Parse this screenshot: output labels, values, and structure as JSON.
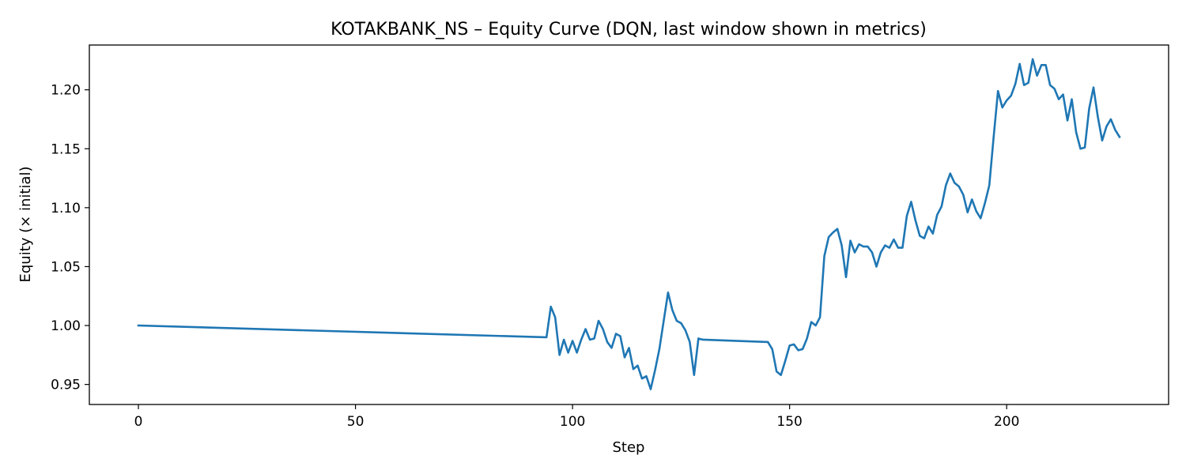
{
  "chart_data": {
    "type": "line",
    "title": "KOTAKBANK_NS – Equity Curve (DQN, last window shown in metrics)",
    "xlabel": "Step",
    "ylabel": "Equity (× initial)",
    "xlim": [
      -11.3,
      237.3
    ],
    "ylim": [
      0.933,
      1.238
    ],
    "xticks": [
      0,
      50,
      100,
      150,
      200
    ],
    "yticks": [
      0.95,
      1.0,
      1.05,
      1.1,
      1.15,
      1.2
    ],
    "ytick_labels": [
      "0.95",
      "1.00",
      "1.05",
      "1.10",
      "1.15",
      "1.20"
    ],
    "grid": false,
    "series": [
      {
        "color": "#1f77b4",
        "x": [
          0,
          94,
          95,
          96,
          97,
          98,
          99,
          100,
          101,
          102,
          103,
          104,
          105,
          106,
          107,
          108,
          109,
          110,
          111,
          112,
          113,
          114,
          115,
          116,
          117,
          118,
          119,
          120,
          121,
          122,
          123,
          124,
          125,
          126,
          127,
          128,
          129,
          130,
          145,
          146,
          147,
          148,
          149,
          150,
          151,
          152,
          153,
          154,
          155,
          156,
          157,
          158,
          159,
          160,
          161,
          162,
          163,
          164,
          165,
          166,
          167,
          168,
          169,
          170,
          171,
          172,
          173,
          174,
          175,
          176,
          177,
          178,
          179,
          180,
          181,
          182,
          183,
          184,
          185,
          186,
          187,
          188,
          189,
          190,
          191,
          192,
          193,
          194,
          195,
          196,
          197,
          198,
          199,
          200,
          201,
          202,
          203,
          204,
          205,
          206,
          207,
          208,
          209,
          210,
          211,
          212,
          213,
          214,
          215,
          216,
          217,
          218,
          219,
          220,
          221,
          222,
          223,
          224,
          225,
          226
        ],
        "y": [
          1.0,
          0.99,
          1.016,
          1.007,
          0.975,
          0.988,
          0.977,
          0.987,
          0.977,
          0.988,
          0.997,
          0.988,
          0.989,
          1.004,
          0.997,
          0.986,
          0.981,
          0.993,
          0.991,
          0.973,
          0.981,
          0.963,
          0.966,
          0.955,
          0.957,
          0.946,
          0.962,
          0.98,
          1.004,
          1.028,
          1.013,
          1.004,
          1.002,
          0.996,
          0.986,
          0.958,
          0.989,
          0.988,
          0.986,
          0.98,
          0.961,
          0.958,
          0.97,
          0.983,
          0.984,
          0.979,
          0.98,
          0.989,
          1.003,
          1.0,
          1.007,
          1.059,
          1.075,
          1.079,
          1.082,
          1.068,
          1.041,
          1.072,
          1.062,
          1.069,
          1.067,
          1.067,
          1.062,
          1.05,
          1.062,
          1.068,
          1.066,
          1.073,
          1.066,
          1.066,
          1.093,
          1.105,
          1.089,
          1.076,
          1.074,
          1.084,
          1.078,
          1.094,
          1.101,
          1.119,
          1.129,
          1.121,
          1.118,
          1.111,
          1.096,
          1.107,
          1.097,
          1.091,
          1.104,
          1.119,
          1.16,
          1.199,
          1.185,
          1.191,
          1.195,
          1.205,
          1.222,
          1.204,
          1.206,
          1.226,
          1.212,
          1.221,
          1.221,
          1.204,
          1.201,
          1.192,
          1.196,
          1.174,
          1.192,
          1.164,
          1.15,
          1.151,
          1.184,
          1.202,
          1.177,
          1.157,
          1.169,
          1.175,
          1.166,
          1.16
        ]
      }
    ]
  }
}
